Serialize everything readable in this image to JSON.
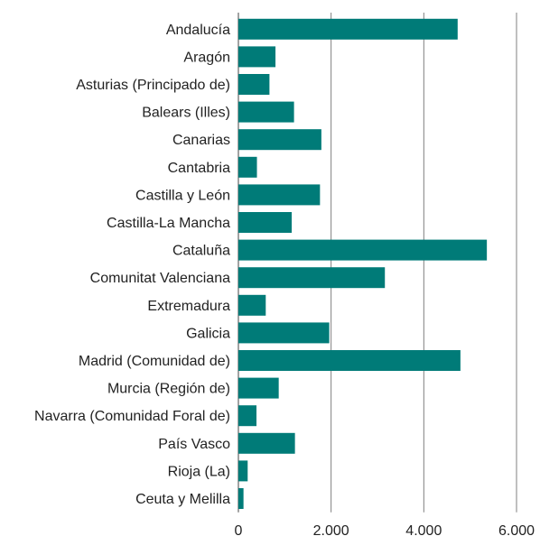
{
  "chart_data": {
    "type": "bar",
    "orientation": "horizontal",
    "categories": [
      "Andalucía",
      "Aragón",
      "Asturias (Principado de)",
      "Balears (Illes)",
      "Canarias",
      "Cantabria",
      "Castilla y León",
      "Castilla-La Mancha",
      "Cataluña",
      "Comunitat Valenciana",
      "Extremadura",
      "Galicia",
      "Madrid (Comunidad de)",
      "Murcia (Región de)",
      "Navarra (Comunidad Foral de)",
      "País Vasco",
      "Rioja (La)",
      "Ceuta y Melilla"
    ],
    "values": [
      4730,
      800,
      670,
      1200,
      1790,
      400,
      1760,
      1150,
      5360,
      3160,
      590,
      1960,
      4790,
      870,
      390,
      1220,
      200,
      110
    ],
    "xlim": [
      0,
      6000
    ],
    "xticks": [
      0,
      2000,
      4000,
      6000
    ],
    "xtick_labels": [
      "0",
      "2.000",
      "4.000",
      "6.000"
    ],
    "grid": true,
    "bar_color": "#007B78",
    "title": "",
    "xlabel": "",
    "ylabel": ""
  }
}
